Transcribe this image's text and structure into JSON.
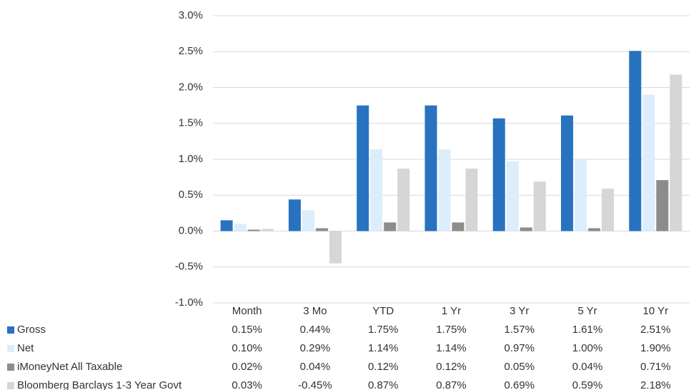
{
  "chart_data": {
    "type": "bar",
    "categories": [
      "Month",
      "3 Mo",
      "YTD",
      "1 Yr",
      "3 Yr",
      "5 Yr",
      "10 Yr"
    ],
    "series": [
      {
        "name": "Gross",
        "color": "#2872c0",
        "values": [
          0.15,
          0.44,
          1.75,
          1.75,
          1.57,
          1.61,
          2.51
        ],
        "value_labels": [
          "0.15%",
          "0.44%",
          "1.75%",
          "1.75%",
          "1.57%",
          "1.61%",
          "2.51%"
        ]
      },
      {
        "name": "Net",
        "color": "#dcedfb",
        "values": [
          0.1,
          0.29,
          1.14,
          1.14,
          0.97,
          1.0,
          1.9
        ],
        "value_labels": [
          "0.10%",
          "0.29%",
          "1.14%",
          "1.14%",
          "0.97%",
          "1.00%",
          "1.90%"
        ]
      },
      {
        "name": "iMoneyNet All Taxable",
        "color": "#8c8c8c",
        "values": [
          0.02,
          0.04,
          0.12,
          0.12,
          0.05,
          0.04,
          0.71
        ],
        "value_labels": [
          "0.02%",
          "0.04%",
          "0.12%",
          "0.12%",
          "0.05%",
          "0.04%",
          "0.71%"
        ]
      },
      {
        "name": "Bloomberg Barclays 1-3 Year Govt",
        "color": "#d6d6d6",
        "values": [
          0.03,
          -0.45,
          0.87,
          0.87,
          0.69,
          0.59,
          2.18
        ],
        "value_labels": [
          "0.03%",
          "-0.45%",
          "0.87%",
          "0.87%",
          "0.69%",
          "0.59%",
          "2.18%"
        ]
      }
    ],
    "ylim": [
      -1,
      3
    ],
    "yticks": [
      {
        "value": -1,
        "label": "-1.0%"
      },
      {
        "value": -0.5,
        "label": "-0.5%"
      },
      {
        "value": 0,
        "label": "0.0%"
      },
      {
        "value": 0.5,
        "label": "0.5%"
      },
      {
        "value": 1,
        "label": "1.0%"
      },
      {
        "value": 1.5,
        "label": "1.5%"
      },
      {
        "value": 2,
        "label": "2.0%"
      },
      {
        "value": 2.5,
        "label": "2.5%"
      },
      {
        "value": 3,
        "label": "3.0%"
      }
    ],
    "grid": true
  }
}
